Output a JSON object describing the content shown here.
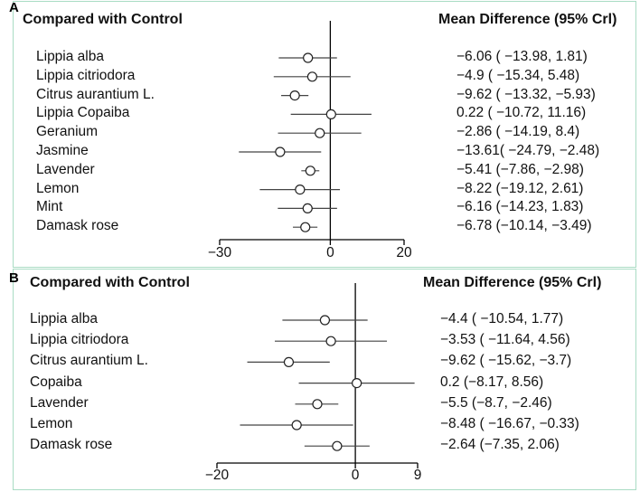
{
  "chart_data": [
    {
      "type": "forest",
      "panel": "A",
      "header_left": "Compared with Control",
      "header_right": "Mean Difference (95% Crl)",
      "xlim": [
        -30,
        20
      ],
      "ticks": [
        "-30",
        "0",
        "20"
      ],
      "rows": [
        {
          "label": "Lippia alba",
          "mean": -6.06,
          "lo": -13.98,
          "hi": 1.81,
          "text": "−6.06 ( −13.98, 1.81)"
        },
        {
          "label": "Lippia citriodora",
          "mean": -4.9,
          "lo": -15.34,
          "hi": 5.48,
          "text": "−4.9 ( −15.34, 5.48)"
        },
        {
          "label": "Citrus aurantium L.",
          "mean": -9.62,
          "lo": -13.32,
          "hi": -5.93,
          "text": "−9.62 ( −13.32, −5.93)"
        },
        {
          "label": "Lippia Copaiba",
          "mean": 0.22,
          "lo": -10.72,
          "hi": 11.16,
          "text": "0.22 ( −10.72, 11.16)"
        },
        {
          "label": "Geranium",
          "mean": -2.86,
          "lo": -14.19,
          "hi": 8.4,
          "text": "−2.86 ( −14.19, 8.4)"
        },
        {
          "label": "Jasmine",
          "mean": -13.61,
          "lo": -24.79,
          "hi": -2.48,
          "text": "−13.61( −24.79, −2.48)"
        },
        {
          "label": "Lavender",
          "mean": -5.41,
          "lo": -7.86,
          "hi": -2.98,
          "text": "−5.41 (−7.86, −2.98)"
        },
        {
          "label": "Lemon",
          "mean": -8.22,
          "lo": -19.12,
          "hi": 2.61,
          "text": "−8.22 (−19.12, 2.61)"
        },
        {
          "label": "Mint",
          "mean": -6.16,
          "lo": -14.23,
          "hi": 1.83,
          "text": "−6.16 (−14.23, 1.83)"
        },
        {
          "label": "Damask rose",
          "mean": -6.78,
          "lo": -10.14,
          "hi": -3.49,
          "text": "−6.78 (−10.14, −3.49)"
        }
      ]
    },
    {
      "type": "forest",
      "panel": "B",
      "header_left": "Compared with Control",
      "header_right": "Mean Difference (95% Crl)",
      "xlim": [
        -20,
        9
      ],
      "ticks": [
        "-20",
        "0",
        "9"
      ],
      "rows": [
        {
          "label": "Lippia alba",
          "mean": -4.4,
          "lo": -10.54,
          "hi": 1.77,
          "text": "−4.4 ( −10.54, 1.77)"
        },
        {
          "label": "Lippia citriodora",
          "mean": -3.53,
          "lo": -11.64,
          "hi": 4.56,
          "text": "−3.53 ( −11.64, 4.56)"
        },
        {
          "label": "Citrus aurantium L.",
          "mean": -9.62,
          "lo": -15.62,
          "hi": -3.7,
          "text": "−9.62 ( −15.62, −3.7)"
        },
        {
          "label": "Copaiba",
          "mean": 0.2,
          "lo": -8.17,
          "hi": 8.56,
          "text": "0.2 (−8.17, 8.56)"
        },
        {
          "label": "Lavender",
          "mean": -5.5,
          "lo": -8.7,
          "hi": -2.46,
          "text": "−5.5 (−8.7, −2.46)"
        },
        {
          "label": "Lemon",
          "mean": -8.48,
          "lo": -16.67,
          "hi": -0.33,
          "text": "−8.48 ( −16.67, −0.33)"
        },
        {
          "label": "Damask rose",
          "mean": -2.64,
          "lo": -7.35,
          "hi": 2.06,
          "text": "−2.64 (−7.35, 2.06)"
        }
      ]
    }
  ],
  "colors": {
    "border": "#a9dcc4",
    "ink": "#111111",
    "line": "#444444"
  }
}
